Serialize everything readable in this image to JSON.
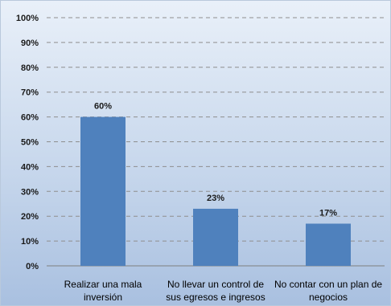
{
  "chart_data": {
    "type": "bar",
    "categories": [
      [
        "Realizar una mala",
        "inversión"
      ],
      [
        "No llevar un control de",
        "sus egresos e ingresos"
      ],
      [
        "No contar con un plan de",
        "negocios"
      ]
    ],
    "values": [
      60,
      23,
      17
    ],
    "data_labels": [
      "60%",
      "23%",
      "17%"
    ],
    "ylim": [
      0,
      100
    ],
    "yticks": [
      0,
      10,
      20,
      30,
      40,
      50,
      60,
      70,
      80,
      90,
      100
    ],
    "ytick_labels": [
      "0%",
      "10%",
      "20%",
      "30%",
      "40%",
      "50%",
      "60%",
      "70%",
      "80%",
      "90%",
      "100%"
    ],
    "grid": true,
    "legend": "none",
    "colors": {
      "bar": "#4f81bd",
      "grid": "#8e8e8e",
      "axis": "#7f7f7f"
    }
  }
}
